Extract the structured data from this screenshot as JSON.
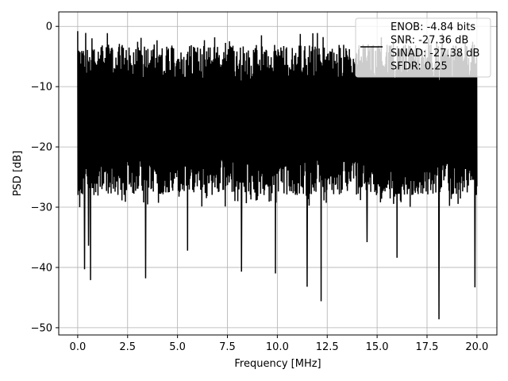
{
  "chart_data": {
    "type": "line",
    "xlabel": "Frequency [MHz]",
    "ylabel": "PSD [dB]",
    "xlim": [
      -0.95,
      21.0
    ],
    "ylim": [
      -51.2,
      2.4
    ],
    "x_ticks": [
      0.0,
      2.5,
      5.0,
      7.5,
      10.0,
      12.5,
      15.0,
      17.5,
      20.0
    ],
    "x_tick_labels": [
      "0.0",
      "2.5",
      "5.0",
      "7.5",
      "10.0",
      "12.5",
      "15.0",
      "17.5",
      "20.0"
    ],
    "y_ticks": [
      0,
      -10,
      -20,
      -30,
      -40,
      -50
    ],
    "y_tick_labels": [
      "0",
      "−10",
      "−20",
      "−30",
      "−40",
      "−50"
    ],
    "grid": true,
    "legend_position": "top-right",
    "series": [
      {
        "name": "ENOB: -4.84 bits\nSNR: -27.36 dB\nSINAD: -27.38 dB\nSFDR: 0.25",
        "color": "#000000",
        "x_range": [
          0.0,
          20.0
        ],
        "band_top_db": -7,
        "band_bottom_db": -22,
        "peak_max_db": -0.8,
        "deep_notches": [
          {
            "x": 0.1,
            "y": -30
          },
          {
            "x": 0.35,
            "y": -40.3
          },
          {
            "x": 0.55,
            "y": -36.4
          },
          {
            "x": 0.65,
            "y": -42.1
          },
          {
            "x": 3.4,
            "y": -41.8
          },
          {
            "x": 5.5,
            "y": -37.2
          },
          {
            "x": 8.2,
            "y": -40.7
          },
          {
            "x": 9.9,
            "y": -41.0
          },
          {
            "x": 11.5,
            "y": -43.2
          },
          {
            "x": 12.2,
            "y": -45.6
          },
          {
            "x": 14.5,
            "y": -35.8
          },
          {
            "x": 16.0,
            "y": -38.4
          },
          {
            "x": 18.1,
            "y": -48.6
          },
          {
            "x": 19.9,
            "y": -43.3
          }
        ]
      }
    ]
  },
  "legend": {
    "lines": [
      "ENOB: -4.84 bits",
      "SNR: -27.36 dB",
      "SINAD: -27.38 dB",
      "SFDR: 0.25"
    ]
  }
}
